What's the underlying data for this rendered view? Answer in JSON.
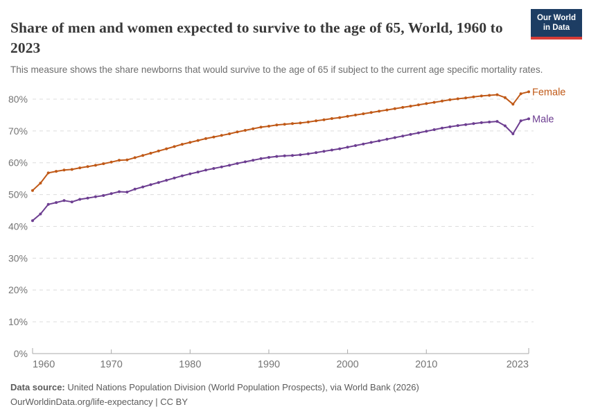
{
  "header": {
    "title": "Share of men and women expected to survive to the age of 65, World, 1960 to 2023",
    "subtitle": "This measure shows the share newborns that would survive to the age of 65 if subject to the current age specific mortality rates."
  },
  "logo": {
    "line1": "Our World",
    "line2": "in Data",
    "background": "#1d3d63",
    "accent": "#d73c37"
  },
  "chart_data": {
    "type": "line",
    "title": "Share of men and women expected to survive to the age of 65, World, 1960 to 2023",
    "xlabel": "",
    "ylabel": "",
    "ylim": [
      0,
      80
    ],
    "yticks": [
      0,
      10,
      20,
      30,
      40,
      50,
      60,
      70,
      80
    ],
    "ytick_suffix": "%",
    "xticks": [
      1960,
      1970,
      1980,
      1990,
      2000,
      2010,
      2023
    ],
    "grid": "horizontal-dashed",
    "legend_position": "end-of-line",
    "x": [
      1960,
      1961,
      1962,
      1963,
      1964,
      1965,
      1966,
      1967,
      1968,
      1969,
      1970,
      1971,
      1972,
      1973,
      1974,
      1975,
      1976,
      1977,
      1978,
      1979,
      1980,
      1981,
      1982,
      1983,
      1984,
      1985,
      1986,
      1987,
      1988,
      1989,
      1990,
      1991,
      1992,
      1993,
      1994,
      1995,
      1996,
      1997,
      1998,
      1999,
      2000,
      2001,
      2002,
      2003,
      2004,
      2005,
      2006,
      2007,
      2008,
      2009,
      2010,
      2011,
      2012,
      2013,
      2014,
      2015,
      2016,
      2017,
      2018,
      2019,
      2020,
      2021,
      2022,
      2023
    ],
    "series": [
      {
        "name": "Female",
        "color": "#c05917",
        "values": [
          51.3,
          53.6,
          56.8,
          57.3,
          57.7,
          57.9,
          58.4,
          58.8,
          59.2,
          59.7,
          60.2,
          60.8,
          60.9,
          61.6,
          62.3,
          63.0,
          63.7,
          64.4,
          65.1,
          65.8,
          66.4,
          67.0,
          67.6,
          68.1,
          68.6,
          69.1,
          69.7,
          70.2,
          70.7,
          71.2,
          71.5,
          71.9,
          72.1,
          72.3,
          72.5,
          72.8,
          73.2,
          73.5,
          73.9,
          74.2,
          74.6,
          75.0,
          75.4,
          75.8,
          76.2,
          76.6,
          77.0,
          77.4,
          77.8,
          78.2,
          78.6,
          79.0,
          79.4,
          79.8,
          80.1,
          80.4,
          80.7,
          81.0,
          81.2,
          81.4,
          80.5,
          78.4,
          81.7,
          82.3
        ]
      },
      {
        "name": "Male",
        "color": "#6d3e91",
        "values": [
          41.8,
          43.9,
          46.9,
          47.5,
          48.1,
          47.7,
          48.5,
          48.9,
          49.3,
          49.7,
          50.3,
          50.9,
          50.8,
          51.7,
          52.4,
          53.1,
          53.8,
          54.5,
          55.2,
          55.9,
          56.5,
          57.1,
          57.7,
          58.2,
          58.7,
          59.2,
          59.8,
          60.3,
          60.8,
          61.3,
          61.7,
          62.0,
          62.2,
          62.3,
          62.5,
          62.8,
          63.2,
          63.6,
          64.0,
          64.4,
          64.9,
          65.4,
          65.9,
          66.4,
          66.9,
          67.4,
          67.9,
          68.4,
          68.9,
          69.4,
          69.9,
          70.4,
          70.9,
          71.3,
          71.7,
          72.0,
          72.3,
          72.6,
          72.8,
          73.0,
          71.6,
          69.1,
          73.2,
          73.8
        ]
      }
    ],
    "style": {
      "gridline_color": "#dcdcdc",
      "axis_color": "#a9a9a9",
      "tick_label_color": "#757575"
    }
  },
  "footer": {
    "source_label": "Data source:",
    "source_text": " United Nations Population Division (World Population Prospects), via World Bank (2026)",
    "license_line": "OurWorldinData.org/life-expectancy | CC BY"
  }
}
